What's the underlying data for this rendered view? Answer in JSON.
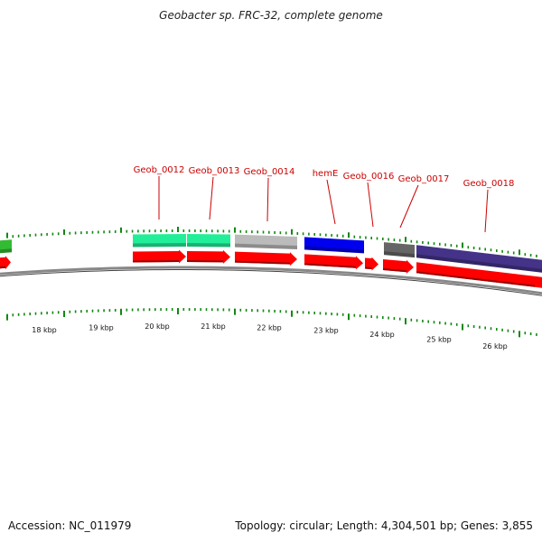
{
  "title": "Geobacter sp. FRC-32, complete genome",
  "footer": {
    "accession": "Accession: NC_011979",
    "summary": "Topology: circular; Length: 4,304,501 bp; Genes: 3,855"
  },
  "gene_labels": [
    "Geob_0012",
    "Geob_0013",
    "Geob_0014",
    "hemE",
    "Geob_0016",
    "Geob_0017",
    "Geob_0018"
  ],
  "kbp_ticks": [
    "18 kbp",
    "19 kbp",
    "20 kbp",
    "21 kbp",
    "22 kbp",
    "23 kbp",
    "24 kbp",
    "25 kbp",
    "26 kbp"
  ],
  "colors": {
    "green": "#33bb33",
    "teal": "#22ee99",
    "light_gray": "#bbbbbb",
    "blue": "#0000ee",
    "dark_gray": "#666666",
    "slate_blue": "#443388",
    "red": "#ff0000",
    "tick": "#118811",
    "label": "#cc0000",
    "backbone": "#888888"
  }
}
